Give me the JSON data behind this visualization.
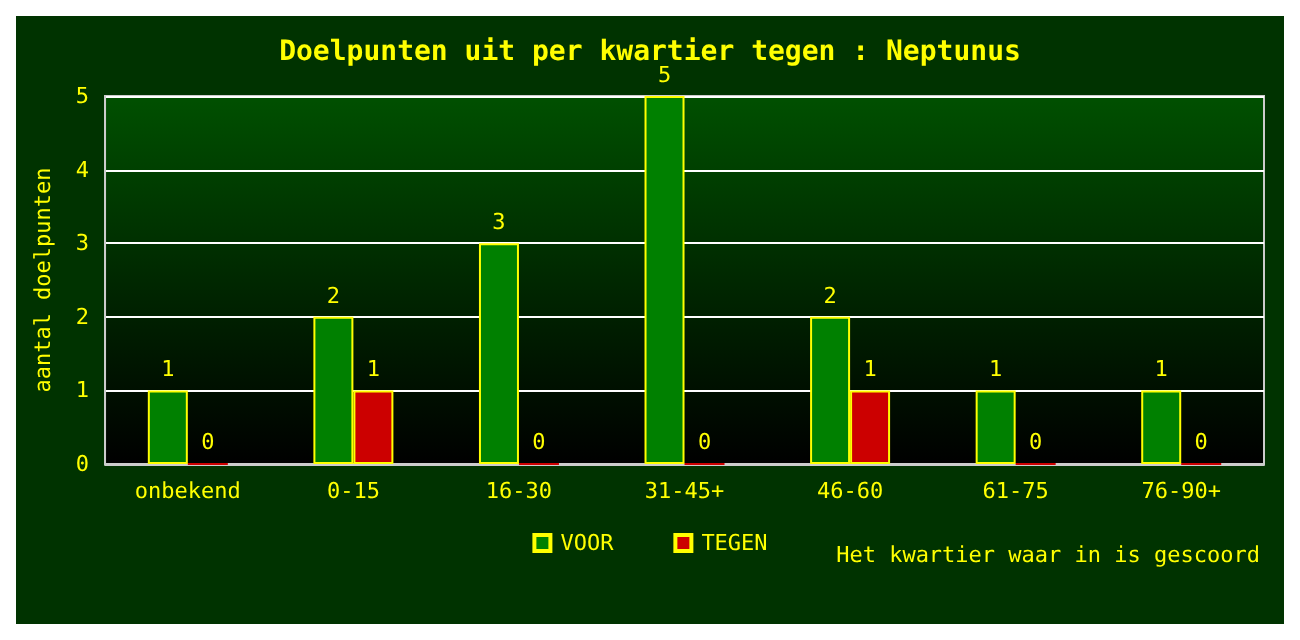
{
  "chart_data": {
    "type": "bar",
    "title": "Doelpunten uit per kwartier tegen : Neptunus",
    "xlabel": "Het kwartier waar in is gescoord",
    "ylabel": "aantal doelpunten",
    "categories": [
      "onbekend",
      "0-15",
      "16-30",
      "31-45+",
      "46-60",
      "61-75",
      "76-90+"
    ],
    "series": [
      {
        "name": "VOOR",
        "color": "#008000",
        "values": [
          1,
          2,
          3,
          5,
          2,
          1,
          1
        ]
      },
      {
        "name": "TEGEN",
        "color": "#cc0000",
        "values": [
          0,
          1,
          0,
          0,
          1,
          0,
          0
        ]
      }
    ],
    "ylim": [
      0,
      5
    ],
    "yticks": [
      0,
      1,
      2,
      3,
      4,
      5
    ],
    "grid": "y",
    "legend": "bottom",
    "data_labels": true
  }
}
